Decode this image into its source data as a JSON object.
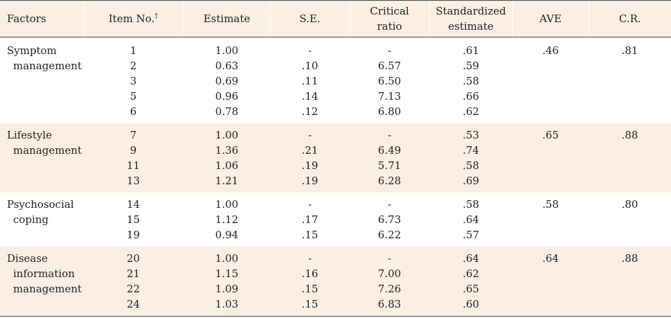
{
  "headers": {
    "factors": "Factors",
    "item_no": "Item No.",
    "item_no_mark": "†",
    "estimate": "Estimate",
    "se": "S.E.",
    "cr_line1": "Critical",
    "cr_line2": "ratio",
    "std_line1": "Standardized",
    "std_line2": "estimate",
    "ave": "AVE",
    "cr": "C.R."
  },
  "groups": [
    {
      "factor": [
        "Symptom",
        "management"
      ],
      "items": [
        "1",
        "2",
        "3",
        "5",
        "6"
      ],
      "estimates": [
        "1.00",
        "0.63",
        "0.69",
        "0.96",
        "0.78"
      ],
      "se": [
        "-",
        ".10",
        ".11",
        ".14",
        ".12"
      ],
      "critical_ratio": [
        "-",
        "6.57",
        "6.50",
        "7.13",
        "6.80"
      ],
      "standardized": [
        ".61",
        ".59",
        ".58",
        ".66",
        ".62"
      ],
      "ave": ".46",
      "cr": ".81"
    },
    {
      "factor": [
        "Lifestyle",
        "management"
      ],
      "items": [
        "7",
        "9",
        "11",
        "13"
      ],
      "estimates": [
        "1.00",
        "1.36",
        "1.06",
        "1.21"
      ],
      "se": [
        "-",
        ".21",
        ".19",
        ".19"
      ],
      "critical_ratio": [
        "-",
        "6.49",
        "5.71",
        "6.28"
      ],
      "standardized": [
        ".53",
        ".74",
        ".58",
        ".69"
      ],
      "ave": ".65",
      "cr": ".88"
    },
    {
      "factor": [
        "Psychosocial",
        "coping"
      ],
      "items": [
        "14",
        "15",
        "19"
      ],
      "estimates": [
        "1.00",
        "1.12",
        "0.94"
      ],
      "se": [
        "-",
        ".17",
        ".15"
      ],
      "critical_ratio": [
        "-",
        "6.73",
        "6.22"
      ],
      "standardized": [
        ".58",
        ".64",
        ".57"
      ],
      "ave": ".58",
      "cr": ".80"
    },
    {
      "factor": [
        "Disease",
        "information",
        "management"
      ],
      "items": [
        "20",
        "21",
        "22",
        "24"
      ],
      "estimates": [
        "1.00",
        "1.15",
        "1.09",
        "1.03"
      ],
      "se": [
        "-",
        ".16",
        ".15",
        ".15"
      ],
      "critical_ratio": [
        "-",
        "7.00",
        "7.26",
        "6.83"
      ],
      "standardized": [
        ".64",
        ".62",
        ".65",
        ".60"
      ],
      "ave": ".64",
      "cr": ".88"
    }
  ]
}
